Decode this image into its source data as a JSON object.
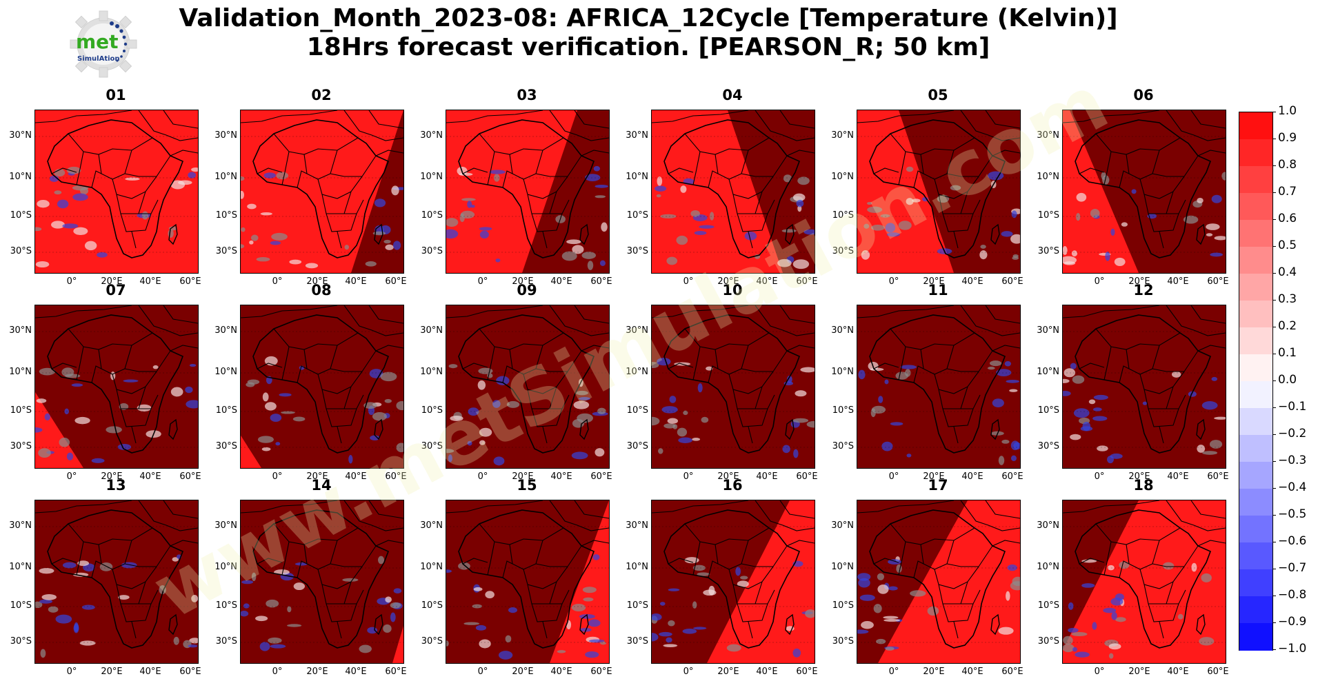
{
  "title": {
    "line1": "Validation_Month_2023-08: AFRICA_12Cycle [Temperature (Kelvin)]",
    "line2": "18Hrs forecast verification.  [PEARSON_R; 50 km]"
  },
  "logo": {
    "text_top": "met",
    "text_bottom": "SimulAtion"
  },
  "watermark": "www.metSimulation.com",
  "panels": [
    "01",
    "02",
    "03",
    "04",
    "05",
    "06",
    "07",
    "08",
    "09",
    "10",
    "11",
    "12",
    "13",
    "14",
    "15",
    "16",
    "17",
    "18"
  ],
  "lat_labels": [
    "30°N",
    "10°N",
    "10°S",
    "30°S"
  ],
  "lon_labels": [
    "0°",
    "20°E",
    "40°E",
    "60°E"
  ],
  "colorbar": {
    "ticks": [
      "1.0",
      "0.9",
      "0.8",
      "0.7",
      "0.6",
      "0.5",
      "0.4",
      "0.3",
      "0.2",
      "0.1",
      "0.0",
      "−0.1",
      "−0.2",
      "−0.3",
      "−0.4",
      "−0.5",
      "−0.6",
      "−0.7",
      "−0.8",
      "−0.9",
      "−1.0"
    ],
    "max_color": "#ff1010",
    "mid_color": "#ffffff",
    "min_color": "#1010ff"
  },
  "colors": {
    "bright_red": "#ff1a1a",
    "dark_red": "#7a0000",
    "blue_patch": "#3344dd",
    "grey_patch": "#8c8c8c"
  }
}
